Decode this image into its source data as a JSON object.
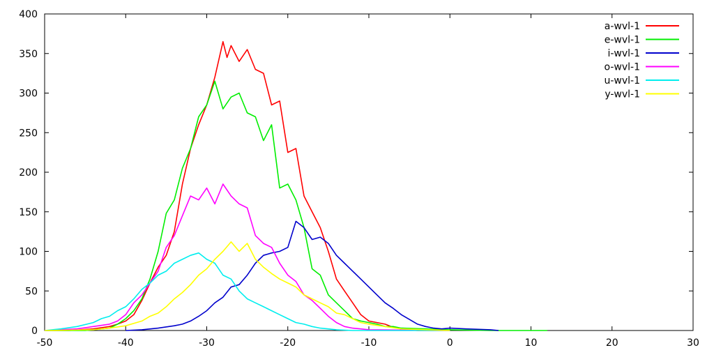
{
  "chart_data": {
    "type": "line",
    "title": "",
    "xlabel": "",
    "ylabel": "",
    "xlim": [
      -50,
      30
    ],
    "ylim": [
      0,
      400
    ],
    "xticks": [
      -50,
      -40,
      -30,
      -20,
      -10,
      0,
      10,
      20,
      30
    ],
    "yticks": [
      0,
      50,
      100,
      150,
      200,
      250,
      300,
      350,
      400
    ],
    "grid": false,
    "legend": "top-right",
    "series": [
      {
        "name": "a-wvl-1",
        "color": "#ff0000",
        "x": [
          -50,
          -47,
          -44,
          -42,
          -41,
          -40,
          -39,
          -38,
          -37,
          -36,
          -35,
          -34,
          -33,
          -32,
          -31,
          -30,
          -29,
          -28,
          -27.5,
          -27,
          -26,
          -25,
          -24,
          -23,
          -22,
          -21,
          -20,
          -19,
          -18,
          -17,
          -16,
          -15,
          -14,
          -13,
          -12,
          -11,
          -10,
          -9,
          -8,
          -7,
          -6,
          -5,
          -4,
          0
        ],
        "y": [
          0,
          0,
          2,
          5,
          8,
          12,
          20,
          38,
          60,
          80,
          95,
          125,
          185,
          230,
          260,
          285,
          320,
          365,
          345,
          360,
          340,
          355,
          330,
          325,
          285,
          290,
          225,
          230,
          170,
          150,
          130,
          100,
          65,
          50,
          35,
          20,
          12,
          10,
          8,
          4,
          2,
          1,
          0,
          0
        ]
      },
      {
        "name": "e-wvl-1",
        "color": "#00ee00",
        "x": [
          -50,
          -45,
          -42,
          -41,
          -40,
          -39,
          -38,
          -37,
          -36,
          -35,
          -34,
          -33,
          -32,
          -31,
          -30,
          -29,
          -28,
          -27,
          -26,
          -25,
          -24,
          -23,
          -22,
          -21,
          -20,
          -19,
          -18,
          -17,
          -16,
          -15,
          -14,
          -13,
          -12,
          -11,
          -10,
          -9,
          -8,
          -7,
          -6,
          0,
          5,
          12
        ],
        "y": [
          0,
          0,
          3,
          8,
          15,
          25,
          40,
          65,
          100,
          148,
          165,
          205,
          230,
          270,
          285,
          315,
          280,
          295,
          300,
          275,
          270,
          240,
          260,
          180,
          185,
          165,
          130,
          78,
          70,
          45,
          35,
          25,
          15,
          12,
          10,
          8,
          5,
          5,
          3,
          1,
          0,
          0
        ]
      },
      {
        "name": "i-wvl-1",
        "color": "#0000cc",
        "x": [
          -40,
          -38,
          -36,
          -34,
          -33,
          -32,
          -31,
          -30,
          -29,
          -28,
          -27,
          -26,
          -25,
          -24,
          -23,
          -22,
          -21,
          -20,
          -19,
          -18,
          -17,
          -16,
          -15,
          -14,
          -13,
          -12,
          -11,
          -10,
          -9,
          -8,
          -7,
          -6,
          -5,
          -4,
          -3,
          -2,
          -1,
          0,
          2,
          5,
          6
        ],
        "y": [
          0,
          1,
          3,
          6,
          8,
          12,
          18,
          25,
          35,
          42,
          55,
          58,
          70,
          85,
          95,
          98,
          100,
          105,
          138,
          130,
          115,
          118,
          110,
          95,
          85,
          75,
          65,
          55,
          45,
          35,
          28,
          20,
          14,
          8,
          5,
          3,
          2,
          3,
          2,
          1,
          0
        ]
      },
      {
        "name": "o-wvl-1",
        "color": "#ff00ff",
        "x": [
          -50,
          -46,
          -44,
          -42,
          -41,
          -40,
          -39,
          -38,
          -37,
          -36,
          -35,
          -34,
          -33,
          -32,
          -31,
          -30,
          -29,
          -28,
          -27,
          -26,
          -25,
          -24,
          -23,
          -22,
          -21,
          -20,
          -19,
          -18,
          -17,
          -16,
          -15,
          -14,
          -13,
          -12,
          -11,
          -10,
          0
        ],
        "y": [
          0,
          2,
          5,
          8,
          12,
          20,
          35,
          45,
          60,
          75,
          105,
          120,
          145,
          170,
          165,
          180,
          160,
          185,
          170,
          160,
          155,
          120,
          110,
          105,
          85,
          70,
          62,
          45,
          38,
          28,
          18,
          10,
          5,
          3,
          2,
          1,
          0
        ]
      },
      {
        "name": "u-wvl-1",
        "color": "#00eeee",
        "x": [
          -50,
          -48,
          -46,
          -44,
          -43,
          -42,
          -41,
          -40,
          -39,
          -38,
          -37,
          -36,
          -35,
          -34,
          -33,
          -32,
          -31,
          -30,
          -29,
          -28,
          -27,
          -26,
          -25,
          -24,
          -23,
          -22,
          -21,
          -20,
          -19,
          -18,
          -17,
          -16,
          -15,
          -14,
          -12,
          -10,
          0
        ],
        "y": [
          0,
          2,
          5,
          10,
          15,
          18,
          25,
          30,
          40,
          52,
          60,
          70,
          75,
          85,
          90,
          95,
          98,
          90,
          85,
          70,
          65,
          50,
          40,
          35,
          30,
          25,
          20,
          15,
          10,
          8,
          5,
          3,
          2,
          1,
          0,
          0,
          0
        ]
      },
      {
        "name": "y-wvl-1",
        "color": "#ffff00",
        "x": [
          -50,
          -44,
          -42,
          -40,
          -38,
          -37,
          -36,
          -35,
          -34,
          -33,
          -32,
          -31,
          -30,
          -29,
          -28,
          -27,
          -26,
          -25,
          -24,
          -23,
          -22,
          -21,
          -20,
          -19,
          -18,
          -17,
          -16,
          -15,
          -14,
          -13,
          -12,
          -11,
          -10,
          -8,
          -6,
          0
        ],
        "y": [
          0,
          1,
          3,
          6,
          12,
          18,
          22,
          30,
          40,
          48,
          58,
          70,
          78,
          90,
          100,
          112,
          100,
          110,
          90,
          80,
          72,
          65,
          60,
          55,
          45,
          40,
          35,
          30,
          22,
          20,
          15,
          10,
          8,
          5,
          2,
          0
        ]
      }
    ]
  }
}
